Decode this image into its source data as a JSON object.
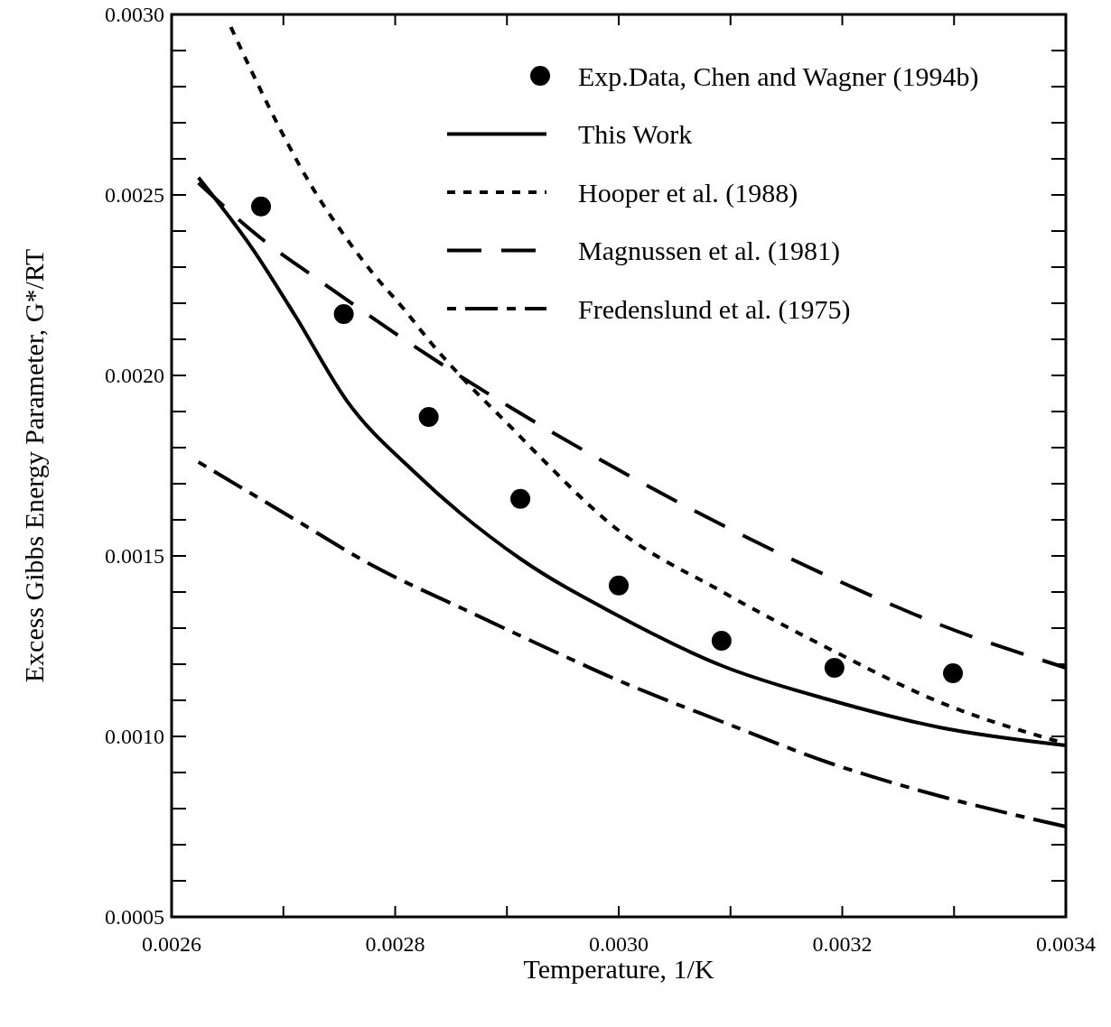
{
  "chart_data": {
    "type": "line",
    "xlabel": "Temperature, 1/K",
    "ylabel": "Excess Gibbs Energy Parameter, G*/RT",
    "xlim": [
      0.0026,
      0.0034
    ],
    "ylim": [
      0.0005,
      0.003
    ],
    "xticks": [
      {
        "value": 0.0026,
        "label": "0.0026"
      },
      {
        "value": 0.0027,
        "label": null
      },
      {
        "value": 0.0028,
        "label": "0.0028"
      },
      {
        "value": 0.0029,
        "label": null
      },
      {
        "value": 0.003,
        "label": "0.0030"
      },
      {
        "value": 0.0031,
        "label": null
      },
      {
        "value": 0.0032,
        "label": "0.0032"
      },
      {
        "value": 0.0033,
        "label": null
      },
      {
        "value": 0.0034,
        "label": "0.0034"
      }
    ],
    "yticks": [
      {
        "value": 0.0005,
        "label": "0.0005"
      },
      {
        "value": 0.0006,
        "label": null
      },
      {
        "value": 0.0007,
        "label": null
      },
      {
        "value": 0.0008,
        "label": null
      },
      {
        "value": 0.0009,
        "label": null
      },
      {
        "value": 0.001,
        "label": "0.0010"
      },
      {
        "value": 0.0011,
        "label": null
      },
      {
        "value": 0.0012,
        "label": null
      },
      {
        "value": 0.0013,
        "label": null
      },
      {
        "value": 0.0014,
        "label": null
      },
      {
        "value": 0.0015,
        "label": "0.0015"
      },
      {
        "value": 0.0016,
        "label": null
      },
      {
        "value": 0.0017,
        "label": null
      },
      {
        "value": 0.0018,
        "label": null
      },
      {
        "value": 0.0019,
        "label": null
      },
      {
        "value": 0.002,
        "label": "0.0020"
      },
      {
        "value": 0.0021,
        "label": null
      },
      {
        "value": 0.0022,
        "label": null
      },
      {
        "value": 0.0023,
        "label": null
      },
      {
        "value": 0.0024,
        "label": null
      },
      {
        "value": 0.0025,
        "label": "0.0025"
      },
      {
        "value": 0.0026,
        "label": null
      },
      {
        "value": 0.0027,
        "label": null
      },
      {
        "value": 0.0028,
        "label": null
      },
      {
        "value": 0.0029,
        "label": null
      },
      {
        "value": 0.003,
        "label": "0.0030"
      }
    ],
    "grid": false,
    "legend": "top right",
    "series": [
      {
        "name": "Exp.Data, Chen and Wagner (1994b)",
        "type": "scatter",
        "marker": "circle",
        "color": "#000000",
        "x": [
          0.00268,
          0.002754,
          0.00283,
          0.002912,
          0.003,
          0.003092,
          0.003193,
          0.003299
        ],
        "values": [
          0.002468,
          0.00217,
          0.001885,
          0.001658,
          0.001418,
          0.001265,
          0.00119,
          0.001175
        ]
      },
      {
        "name": "This Work",
        "line_style": "solid",
        "color": "#000000",
        "x": [
          0.002624,
          0.002673,
          0.002711,
          0.002756,
          0.002818,
          0.002913,
          0.002996,
          0.003093,
          0.00319,
          0.003287,
          0.0034
        ],
        "values": [
          0.002548,
          0.002348,
          0.002163,
          0.001933,
          0.00173,
          0.00149,
          0.00134,
          0.001195,
          0.0011,
          0.001025,
          0.000975
        ]
      },
      {
        "name": "Hooper et al. (1988)",
        "line_style": "dotted",
        "color": "#000000",
        "x": [
          0.002653,
          0.002673,
          0.0027,
          0.002727,
          0.002754,
          0.00278,
          0.002808,
          0.002834,
          0.002861,
          0.002901,
          0.002931,
          0.002996,
          0.003093,
          0.00319,
          0.003287,
          0.0034
        ],
        "values": [
          0.002965,
          0.002833,
          0.002665,
          0.002515,
          0.00239,
          0.002283,
          0.002183,
          0.002083,
          0.00199,
          0.001865,
          0.00177,
          0.00158,
          0.0014,
          0.00124,
          0.001095,
          0.00098
        ]
      },
      {
        "name": "Magnussen et al. (1981)",
        "line_style": "dashed",
        "color": "#000000",
        "x": [
          0.002624,
          0.002686,
          0.002729,
          0.002816,
          0.002905,
          0.002996,
          0.003093,
          0.00319,
          0.003287,
          0.0034
        ],
        "values": [
          0.002533,
          0.002365,
          0.00227,
          0.002083,
          0.001908,
          0.001745,
          0.001585,
          0.00144,
          0.00131,
          0.00119
        ]
      },
      {
        "name": "Fredenslund et al. (1975)",
        "line_style": "dashdot",
        "color": "#000000",
        "x": [
          0.002624,
          0.002707,
          0.00278,
          0.002861,
          0.002939,
          0.002996,
          0.003093,
          0.00319,
          0.003287,
          0.0034
        ],
        "values": [
          0.00176,
          0.001607,
          0.001473,
          0.001353,
          0.00124,
          0.00116,
          0.00104,
          0.000925,
          0.000835,
          0.00075
        ]
      }
    ]
  }
}
